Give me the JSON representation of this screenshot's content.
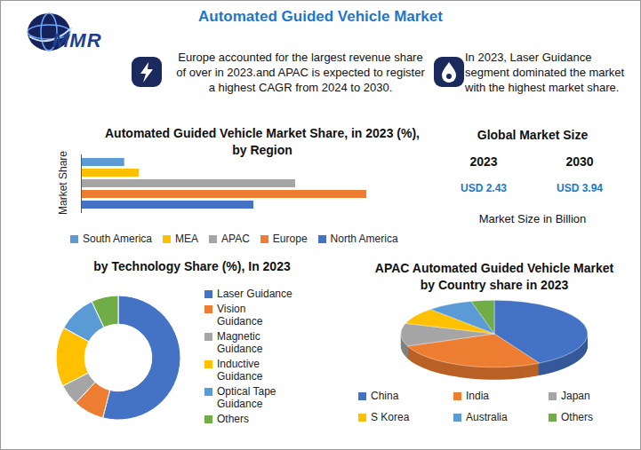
{
  "header": {
    "logo": "MMR",
    "title": "Automated Guided Vehicle Market"
  },
  "notes": [
    "Europe accounted for the largest revenue share of over in 2023.and APAC is expected to register a highest CAGR from 2024 to 2030.",
    "In 2023, Laser Guidance segment dominated the market with the highest market share."
  ],
  "market_size": {
    "title": "Global Market Size",
    "columns": [
      {
        "year": "2023",
        "value": "USD 2.43"
      },
      {
        "year": "2030",
        "value": "USD 3.94"
      }
    ],
    "caption": "Market Size in Billion"
  },
  "chart_data": [
    {
      "type": "bar",
      "title": "Automated Guided Vehicle Market Share, in 2023 (%), by Region",
      "ylabel": "Market Share",
      "orientation": "horizontal",
      "categories": [
        "South America",
        "MEA",
        "APAC",
        "Europe",
        "North America"
      ],
      "values": [
        5.6,
        7.5,
        27.7,
        36.9,
        22.3
      ],
      "colors": [
        "#5B9BD5",
        "#FFC000",
        "#A5A5A5",
        "#ED7D31",
        "#4472C4"
      ],
      "xlim": [
        0,
        40
      ],
      "tick_labels": false,
      "legend": "bottom"
    },
    {
      "type": "donut",
      "title": "by Technology Share (%), In 2023",
      "categories": [
        "Laser Guidance",
        "Vision Guidance",
        "Magnetic Guidance",
        "Inductive Guidance",
        "Optical Tape Guidance",
        "Others"
      ],
      "values": [
        54,
        8,
        5.5,
        15.5,
        10,
        7
      ],
      "colors": [
        "#4472C4",
        "#ED7D31",
        "#A5A5A5",
        "#FFC000",
        "#5B9BD5",
        "#70AD47"
      ],
      "legend": "right"
    },
    {
      "type": "pie",
      "title": "APAC Automated Guided Vehicle Market by Country share in 2023",
      "categories": [
        "China",
        "India",
        "Japan",
        "S Korea",
        "Australia",
        "Others"
      ],
      "values": [
        42,
        27,
        11,
        8,
        8,
        4
      ],
      "colors": [
        "#4472C4",
        "#ED7D31",
        "#A5A5A5",
        "#FFC000",
        "#5B9BD5",
        "#70AD47"
      ],
      "legend": "bottom"
    }
  ]
}
